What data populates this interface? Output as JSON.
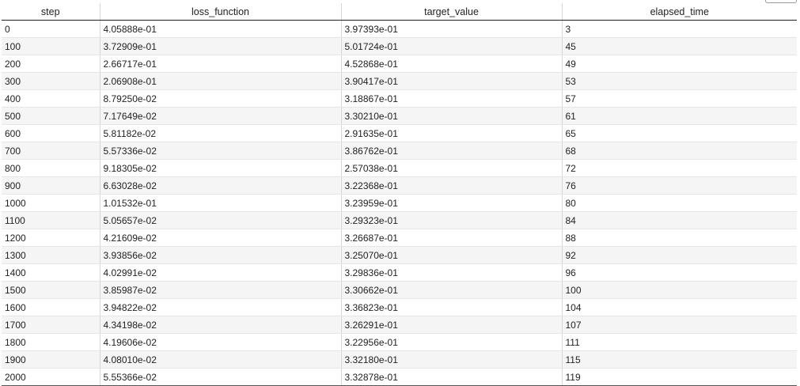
{
  "table": {
    "columns": [
      "step",
      "loss_function",
      "target_value",
      "elapsed_time"
    ],
    "rows": [
      [
        "0",
        "4.05888e-01",
        "3.97393e-01",
        "3"
      ],
      [
        "100",
        "3.72909e-01",
        "5.01724e-01",
        "45"
      ],
      [
        "200",
        "2.66717e-01",
        "4.52868e-01",
        "49"
      ],
      [
        "300",
        "2.06908e-01",
        "3.90417e-01",
        "53"
      ],
      [
        "400",
        "8.79250e-02",
        "3.18867e-01",
        "57"
      ],
      [
        "500",
        "7.17649e-02",
        "3.30210e-01",
        "61"
      ],
      [
        "600",
        "5.81182e-02",
        "2.91635e-01",
        "65"
      ],
      [
        "700",
        "5.57336e-02",
        "3.86762e-01",
        "68"
      ],
      [
        "800",
        "9.18305e-02",
        "2.57038e-01",
        "72"
      ],
      [
        "900",
        "6.63028e-02",
        "3.22368e-01",
        "76"
      ],
      [
        "1000",
        "1.01532e-01",
        "3.23959e-01",
        "80"
      ],
      [
        "1100",
        "5.05657e-02",
        "3.29323e-01",
        "84"
      ],
      [
        "1200",
        "4.21609e-02",
        "3.26687e-01",
        "88"
      ],
      [
        "1300",
        "3.93856e-02",
        "3.25070e-01",
        "92"
      ],
      [
        "1400",
        "4.02991e-02",
        "3.29836e-01",
        "96"
      ],
      [
        "1500",
        "3.85987e-02",
        "3.30662e-01",
        "100"
      ],
      [
        "1600",
        "3.94822e-02",
        "3.36823e-01",
        "104"
      ],
      [
        "1700",
        "4.34198e-02",
        "3.26291e-01",
        "107"
      ],
      [
        "1800",
        "4.19606e-02",
        "3.22956e-01",
        "111"
      ],
      [
        "1900",
        "4.08010e-02",
        "3.32180e-01",
        "115"
      ],
      [
        "2000",
        "5.55366e-02",
        "3.32878e-01",
        "119"
      ]
    ]
  }
}
